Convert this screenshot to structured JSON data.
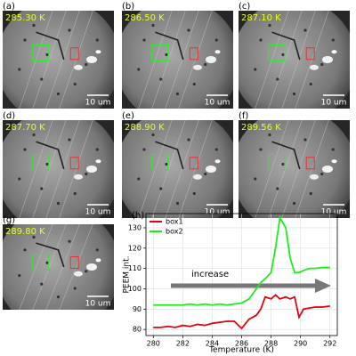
{
  "panels": [
    {
      "label": "(a)",
      "temperature": "285.30 K",
      "scale_bar": "10 um"
    },
    {
      "label": "(b)",
      "temperature": "286.50 K",
      "scale_bar": "10 um"
    },
    {
      "label": "(c)",
      "temperature": "287.10 K",
      "scale_bar": "10 um"
    },
    {
      "label": "(d)",
      "temperature": "287.70 K",
      "scale_bar": "10 um"
    },
    {
      "label": "(e)",
      "temperature": "288.90 K",
      "scale_bar": "10 um"
    },
    {
      "label": "(f)",
      "temperature": "289.56 K",
      "scale_bar": "10 um"
    },
    {
      "label": "(g)",
      "temperature": "289.80 K",
      "scale_bar": "10 um"
    }
  ],
  "chart_data": {
    "type": "line",
    "panel_label": "(h)",
    "xlabel": "Temperature (K)",
    "ylabel": "PEEM int.",
    "annotation": "increase",
    "x": [
      280,
      280.5,
      281,
      281.5,
      282,
      282.5,
      283,
      283.5,
      284,
      284.5,
      285,
      285.5,
      286,
      286.5,
      287,
      287.3,
      287.6,
      288,
      288.3,
      288.6,
      289,
      289.3,
      289.6,
      289.9,
      290.2,
      290.6,
      291,
      291.5,
      292
    ],
    "series": [
      {
        "name": "box1",
        "color": "#e8000b",
        "values": [
          81,
          81,
          81.5,
          81,
          82,
          81.5,
          82.5,
          82,
          83,
          83.5,
          84,
          84,
          80.5,
          85,
          87,
          90,
          96,
          95,
          97,
          95,
          96,
          95,
          96,
          86,
          90,
          90.5,
          91,
          91,
          91.5
        ]
      },
      {
        "name": "box2",
        "color": "#1aee1a",
        "values": [
          92,
          92,
          92,
          92,
          92,
          92.5,
          92,
          92.5,
          92,
          92.5,
          92,
          92.5,
          93,
          95,
          100,
          103,
          105,
          108,
          120,
          135,
          130,
          115,
          108,
          108,
          109,
          110,
          110,
          110.5,
          110.5
        ]
      }
    ],
    "xlim": [
      279.5,
      292.5
    ],
    "ylim": [
      77,
      137
    ],
    "xticks": [
      280,
      282,
      284,
      286,
      288,
      290,
      292
    ],
    "yticks": [
      80,
      90,
      100,
      110,
      120,
      130
    ],
    "grid": true,
    "legend": "upper left"
  }
}
